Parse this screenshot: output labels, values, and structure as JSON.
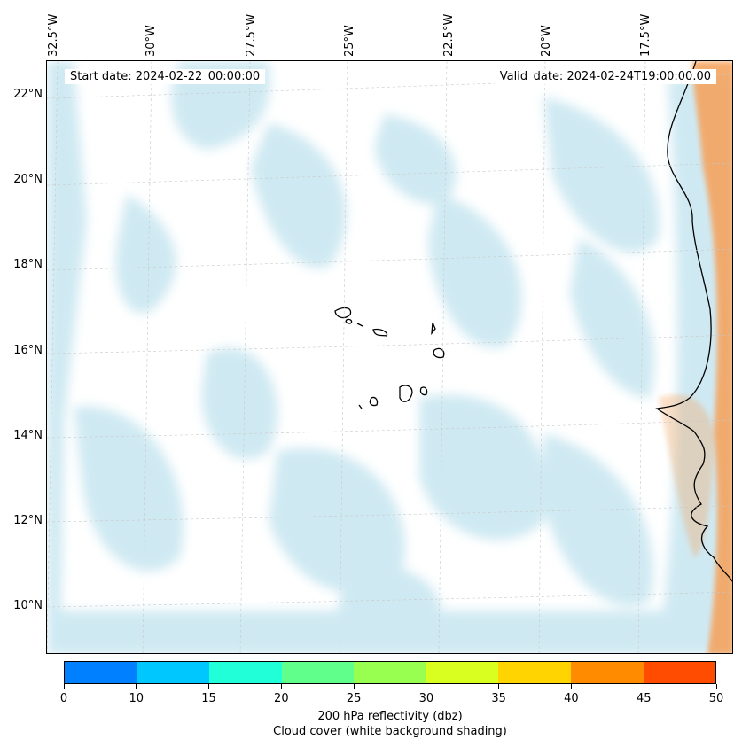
{
  "map": {
    "start_date": "Start date: 2024-02-22_00:00:00",
    "valid_date": "Valid_date: 2024-02-24T19:00:00.00",
    "lon_labels": [
      "32.5°W",
      "30°W",
      "27.5°W",
      "25°W",
      "22.5°W",
      "20°W",
      "17.5°W"
    ],
    "lat_labels": [
      "22°N",
      "20°N",
      "18°N",
      "16°N",
      "14°N",
      "12°N",
      "10°N"
    ],
    "colors": {
      "cloud": "#a8d8e8",
      "land_reflectivity": "#f4a460",
      "coastline": "#000000"
    }
  },
  "colorbar": {
    "colors": [
      "#0080ff",
      "#00c8ff",
      "#20ffd8",
      "#60ff8c",
      "#98ff50",
      "#d8ff20",
      "#ffd400",
      "#ff8c00",
      "#ff4c00"
    ],
    "tick_labels": [
      "0",
      "10",
      "15",
      "20",
      "25",
      "30",
      "35",
      "40",
      "45",
      "50"
    ],
    "label_line1": "200 hPa reflectivity (dbz)",
    "label_line2": "Cloud cover (white background shading)"
  }
}
